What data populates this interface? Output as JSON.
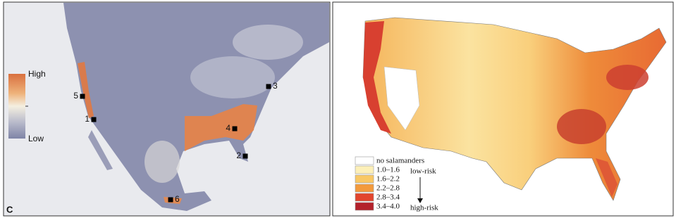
{
  "left_panel": {
    "panel_label": "C",
    "colorbar": {
      "high": "High",
      "low": "Low"
    },
    "sites": [
      "1",
      "2",
      "3",
      "4",
      "5",
      "6"
    ]
  },
  "right_panel": {
    "legend": [
      "no salamanders",
      "1.0–1.6",
      "1.6–2.2",
      "2.2–2.8",
      "2.8–3.4",
      "3.4–4.0"
    ],
    "low_label": "low-risk",
    "high_label": "high-risk"
  }
}
